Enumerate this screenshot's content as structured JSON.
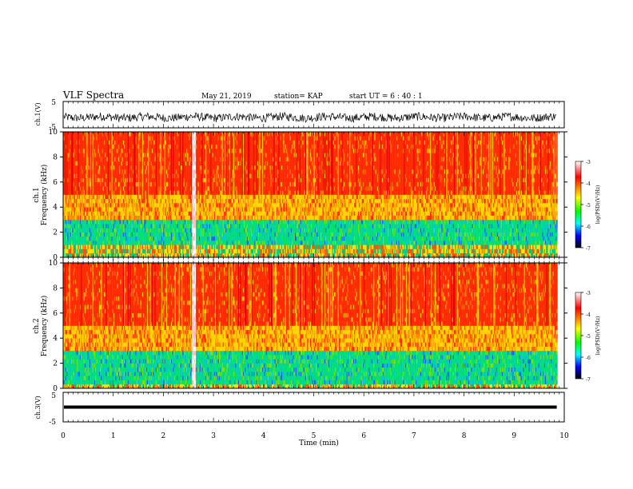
{
  "header": {
    "title": "VLF Spectra",
    "date": "May 21, 2019",
    "station": "station= KAP",
    "start_ut": "start  UT =  6 : 40 : 1"
  },
  "chart_data": [
    {
      "type": "line",
      "panel": "ch1-waveform",
      "ylabel": "ch.1(V)",
      "ylim": [
        -5,
        5
      ],
      "ytick_labels": [
        "5",
        "-5"
      ],
      "xlim": [
        0,
        10
      ],
      "description_values": "noisy waveform centered near -1 V, amplitude roughly ±1.5 V, spanning 0 to ~9.8 min"
    },
    {
      "type": "heatmap",
      "panel": "ch1-spectrogram",
      "ylabel_line1": "ch.1",
      "ylabel_line2": "Frequency (kHz)",
      "ylim": [
        0,
        10
      ],
      "ytick_labels": [
        "10",
        "8",
        "6",
        "4",
        "2",
        "0"
      ],
      "xlim": [
        0,
        10
      ],
      "data_end_min": 9.85,
      "bands": [
        {
          "from_khz": 5.0,
          "to_khz": 10.0,
          "level": "red (≈ -4)"
        },
        {
          "from_khz": 3.0,
          "to_khz": 5.0,
          "level": "yellow/orange (≈ -4.5)"
        },
        {
          "from_khz": 1.0,
          "to_khz": 3.0,
          "level": "green/cyan (≈ -5.5)"
        },
        {
          "from_khz": 0.0,
          "to_khz": 1.0,
          "level": "mixed yellow/red"
        }
      ],
      "bright_vertical_event_min": 2.6,
      "colorbar": {
        "label": "log(PSD)(V²/Hz)",
        "ticks": [
          "-3",
          "-4",
          "-5",
          "-6",
          "-7"
        ],
        "colors": [
          "#ffffff",
          "#ff0000",
          "#ffff00",
          "#00ff00",
          "#00ffff",
          "#0000ff",
          "#000000"
        ]
      }
    },
    {
      "type": "heatmap",
      "panel": "ch2-spectrogram",
      "ylabel_line1": "ch.2",
      "ylabel_line2": "Frequency (kHz)",
      "ylim": [
        0,
        10
      ],
      "ytick_labels": [
        "10",
        "8",
        "6",
        "4",
        "2",
        "0"
      ],
      "xlim": [
        0,
        10
      ],
      "data_end_min": 9.85,
      "bands": [
        {
          "from_khz": 5.0,
          "to_khz": 10.0,
          "level": "red (≈ -4)"
        },
        {
          "from_khz": 3.0,
          "to_khz": 5.0,
          "level": "yellow/orange (≈ -4.5)"
        },
        {
          "from_khz": 0.5,
          "to_khz": 3.0,
          "level": "green/cyan (≈ -5.5)"
        },
        {
          "from_khz": 0.0,
          "to_khz": 0.5,
          "level": "mixed yellow/red"
        }
      ],
      "bright_vertical_event_min": 2.6,
      "colorbar": {
        "label": "log(PSD)(V²/Hz)",
        "ticks": [
          "-3",
          "-4",
          "-5",
          "-6",
          "-7"
        ],
        "colors": [
          "#ffffff",
          "#ff0000",
          "#ffff00",
          "#00ff00",
          "#00ffff",
          "#0000ff",
          "#000000"
        ]
      }
    },
    {
      "type": "line",
      "panel": "ch3-waveform",
      "ylabel": "ch.3(V)",
      "ylim": [
        -5,
        5
      ],
      "ytick_labels": [
        "5",
        "-5"
      ],
      "xlim": [
        0,
        10
      ],
      "constant_value_v": 0,
      "data_end_min": 9.85
    }
  ],
  "xaxis": {
    "label": "Time  (min)",
    "ticks": [
      "0",
      "1",
      "2",
      "3",
      "4",
      "5",
      "6",
      "7",
      "8",
      "9",
      "10"
    ]
  }
}
